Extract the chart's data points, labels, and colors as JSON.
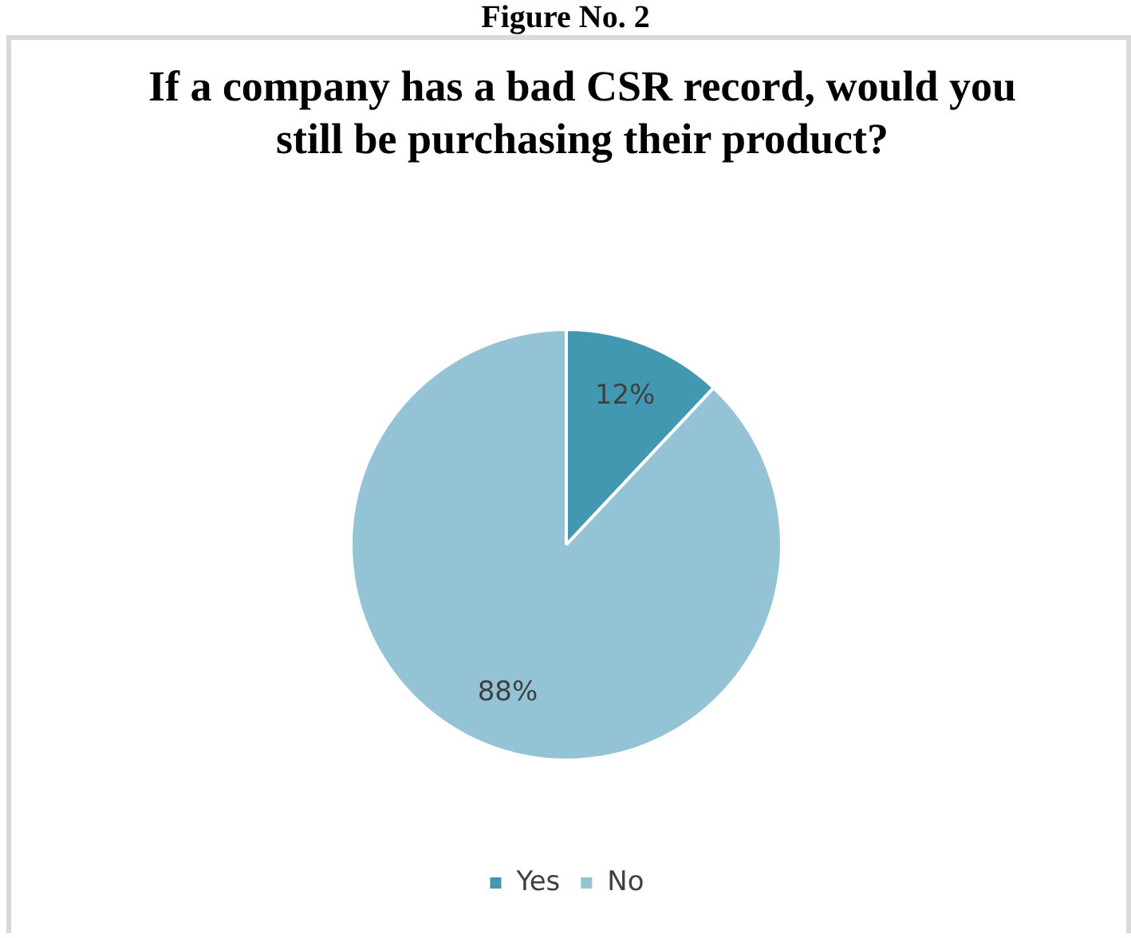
{
  "chart_data": {
    "type": "pie",
    "title": "If a company has a bad CSR record, would you still be purchasing their product?",
    "annotations": [
      "Figure No. 2"
    ],
    "categories": [
      "Yes",
      "No"
    ],
    "values": [
      12,
      88
    ],
    "colors": [
      "#4198b0",
      "#93c3d5"
    ],
    "value_labels": [
      "12%",
      "88%"
    ],
    "legend": "bottom"
  }
}
